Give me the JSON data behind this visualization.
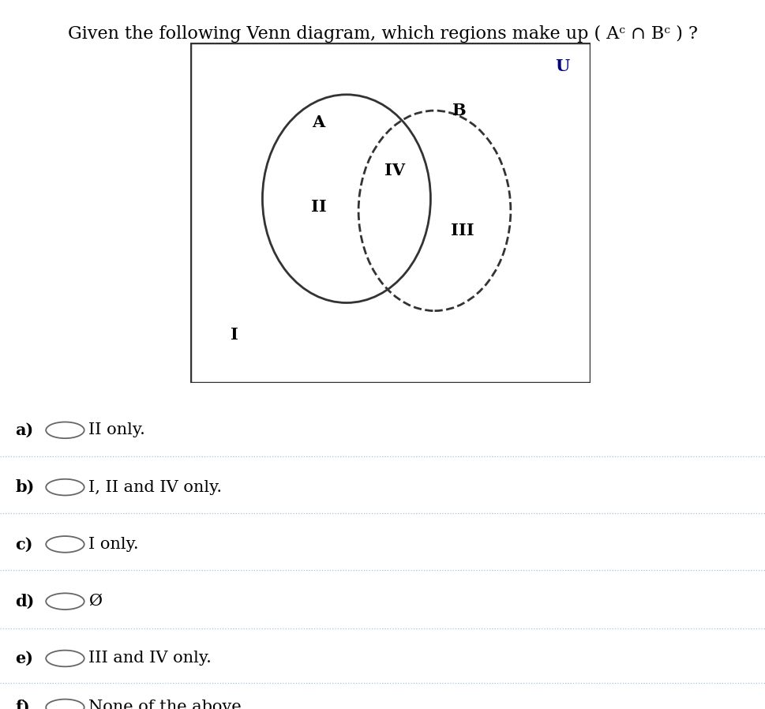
{
  "bg_color": "#ffffff",
  "title": "Given the following Venn diagram, which regions make up ( Aᶜ ∩ Bᶜ ) ?",
  "box_color": "#333333",
  "circle_A_linestyle": "solid",
  "circle_B_linestyle": "dashed",
  "label_U_color": "#000080",
  "options": [
    {
      "label": "a)",
      "text": "II only."
    },
    {
      "label": "b)",
      "text": "I, II and IV only."
    },
    {
      "label": "c)",
      "text": "I only."
    },
    {
      "label": "d)",
      "text": "Ø"
    },
    {
      "label": "e)",
      "text": "III and IV only."
    },
    {
      "label": "f)",
      "text": "None of the above."
    }
  ],
  "divider_color": "#aac4d8",
  "font_size_title": 16,
  "font_size_venn_labels": 15,
  "font_size_options": 15,
  "font_size_option_labels": 15
}
